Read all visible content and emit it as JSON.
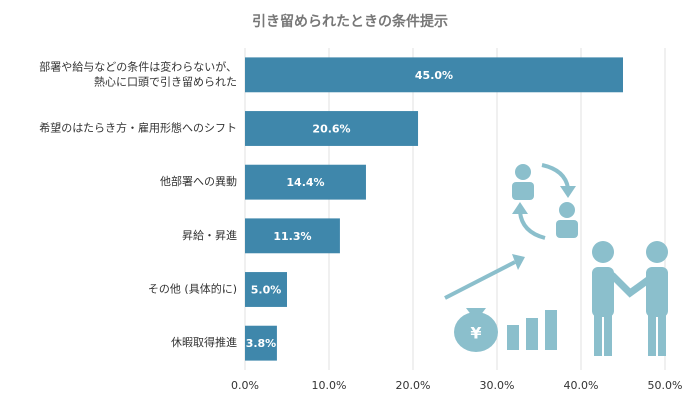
{
  "chart_data": {
    "type": "bar",
    "orientation": "horizontal",
    "title": "引き留められたときの条件提示",
    "categories": [
      "部署や給与などの条件は変わらないが、\n熱心に口頭で引き留められた",
      "希望のはたらき方・雇用形態へのシフト",
      "他部署への異動",
      "昇給・昇進",
      "その他 (具体的に)",
      "休暇取得推進"
    ],
    "values": [
      45.0,
      20.6,
      14.4,
      11.3,
      5.0,
      3.8
    ],
    "value_labels": [
      "45.0%",
      "20.6%",
      "14.4%",
      "11.3%",
      "5.0%",
      "3.8%"
    ],
    "color": "#3f87ab",
    "xlim": [
      0,
      50
    ],
    "xticks": [
      {
        "value": 0,
        "label": "0.0%"
      },
      {
        "value": 10,
        "label": "10.0%"
      },
      {
        "value": 20,
        "label": "20.0%"
      },
      {
        "value": 30,
        "label": "30.0%"
      },
      {
        "value": 40,
        "label": "40.0%"
      },
      {
        "value": 50,
        "label": "50.0%"
      }
    ],
    "grid": true
  }
}
